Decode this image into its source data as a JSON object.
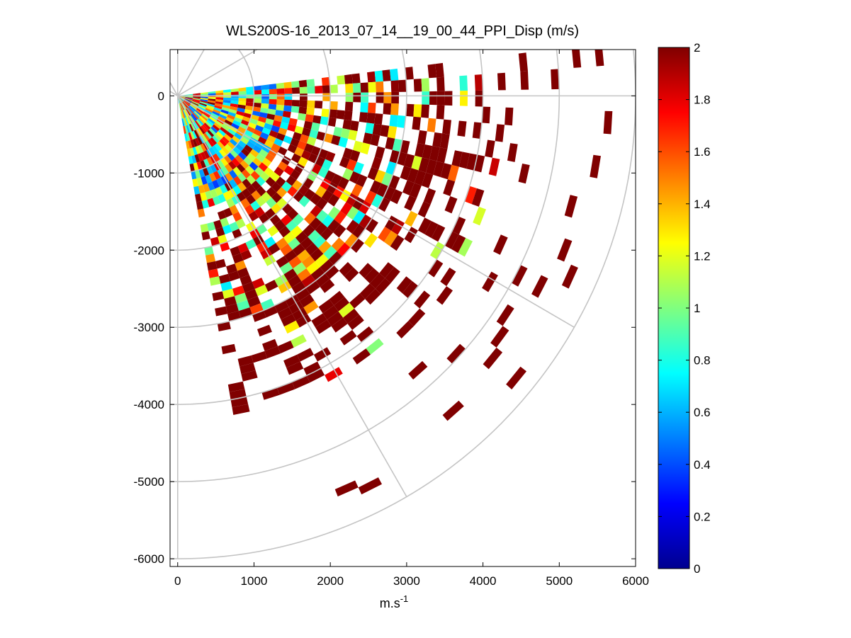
{
  "chart_data": {
    "type": "heatmap",
    "title": "WLS200S-16_2013_07_14__19_00_44_PPI_Disp (m/s)",
    "xlabel_base": "m.s",
    "xlabel_exp": "-1",
    "ylabel": "",
    "xlim": [
      -100,
      6000
    ],
    "ylim": [
      -6100,
      600
    ],
    "x_ticks": [
      0,
      1000,
      2000,
      3000,
      4000,
      5000,
      6000
    ],
    "x_tick_labels": [
      "0",
      "1000",
      "2000",
      "3000",
      "4000",
      "5000",
      "6000"
    ],
    "y_ticks": [
      0,
      -1000,
      -2000,
      -3000,
      -4000,
      -5000,
      -6000
    ],
    "y_tick_labels": [
      "0",
      "-1000",
      "-2000",
      "-3000",
      "-4000",
      "-5000",
      "-6000"
    ],
    "polar_grid": {
      "ring_radii": [
        1000,
        2000,
        3000,
        4000,
        5000,
        6000
      ],
      "spoke_angles_deg": [
        0,
        -30,
        -60,
        -90,
        30,
        60,
        90,
        120,
        150
      ]
    },
    "scan": {
      "azimuth_start_deg": 7,
      "azimuth_end_deg": -80,
      "azimuth_step_deg": 3,
      "range_gate_m": 100,
      "max_range_m": 5800
    },
    "colorbar": {
      "colormap": "jet",
      "range": [
        0,
        2
      ],
      "ticks": [
        0,
        0.2,
        0.4,
        0.6,
        0.8,
        1,
        1.2,
        1.4,
        1.6,
        1.8,
        2
      ],
      "tick_labels": [
        "0",
        "0.2",
        "0.4",
        "0.6",
        "0.8",
        "1",
        "1.2",
        "1.4",
        "1.6",
        "1.8",
        "2"
      ]
    },
    "value_zones": [
      {
        "range_m": [
          0,
          1500
        ],
        "description": "mixed",
        "typical_value": 0.9
      },
      {
        "range_m": [
          1500,
          3000
        ],
        "description": "mixed-high",
        "typical_value": 1.5
      },
      {
        "range_m": [
          3000,
          6000
        ],
        "description": "saturated",
        "typical_value": 2.0
      }
    ]
  }
}
